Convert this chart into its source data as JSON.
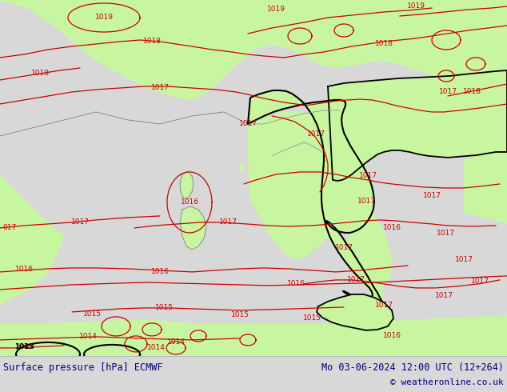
{
  "title_left": "Surface pressure [hPa] ECMWF",
  "title_right": "Mo 03-06-2024 12:00 UTC (12+264)",
  "copyright": "© weatheronline.co.uk",
  "land_color": "#c8f5a0",
  "sea_color": "#d8d8d8",
  "border_color_black": "#000000",
  "border_color_gray": "#888899",
  "isobar_color": "#cc0000",
  "isobar_lw": 0.9,
  "label_fontsize": 6.5,
  "bottom_bar_color": "#cccccc",
  "bottom_text_color": "#000080",
  "figsize": [
    6.34,
    4.9
  ],
  "dpi": 100
}
